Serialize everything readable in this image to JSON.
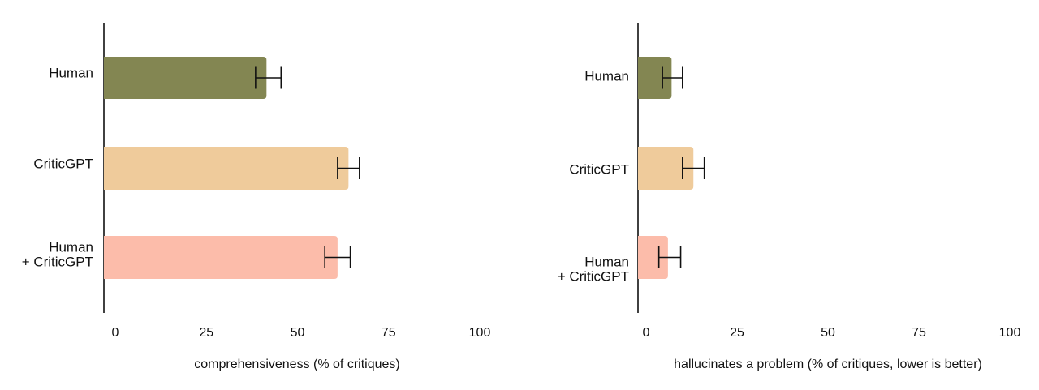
{
  "chart_data": [
    {
      "type": "bar",
      "orientation": "horizontal",
      "categories": [
        [
          "Human"
        ],
        [
          "CriticGPT"
        ],
        [
          "Human",
          "+ CriticGPT"
        ]
      ],
      "values": [
        41.5,
        64,
        61
      ],
      "errors": [
        [
          38.5,
          45.5
        ],
        [
          61,
          67
        ],
        [
          57.5,
          64.5
        ]
      ],
      "colors": [
        "#838652",
        "#efcb9b",
        "#fcbcaa"
      ],
      "xlabel": "comprehensiveness (% of critiques)",
      "xlim": [
        0,
        100
      ],
      "xticks": [
        "0",
        "25",
        "50",
        "75",
        "100"
      ],
      "grid": false
    },
    {
      "type": "bar",
      "orientation": "horizontal",
      "categories": [
        [
          "Human"
        ],
        [
          "CriticGPT"
        ],
        [
          "Human",
          "+ CriticGPT"
        ]
      ],
      "values": [
        7,
        13,
        6
      ],
      "errors": [
        [
          4.5,
          10
        ],
        [
          10,
          16
        ],
        [
          3.5,
          9.5
        ]
      ],
      "colors": [
        "#838652",
        "#efcb9b",
        "#fcbcaa"
      ],
      "xlabel": "hallucinates a problem (% of critiques, lower is better)",
      "xlim": [
        0,
        100
      ],
      "xticks": [
        "0",
        "25",
        "50",
        "75",
        "100"
      ],
      "grid": false
    }
  ]
}
